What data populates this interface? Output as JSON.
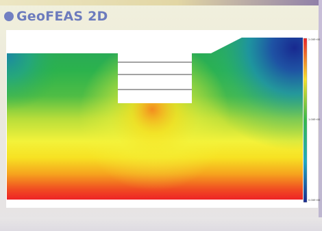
{
  "header": {
    "title": "GeoFEAS 2D"
  },
  "legend": {
    "top_label": "2.00E+00",
    "mid_label": "1.00E+00",
    "bottom_label": "0.00E+00"
  },
  "colors": {
    "title": "#6c7bbd",
    "high": "#ef2a2a",
    "mid_yellow": "#f7ee2a",
    "mid_green": "#2db84a",
    "low": "#1b2c8f"
  }
}
